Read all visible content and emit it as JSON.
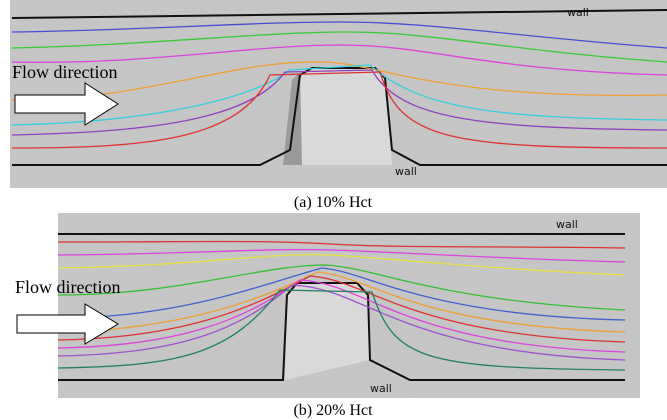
{
  "panels": [
    {
      "wall_top": "wall",
      "wall_bottom": "wall",
      "flow_label": "Flow direction",
      "caption": "(a) 10% Hct"
    },
    {
      "wall_top": "wall",
      "wall_bottom": "wall",
      "flow_label": "Flow direction",
      "caption": "(b) 20% Hct"
    }
  ]
}
